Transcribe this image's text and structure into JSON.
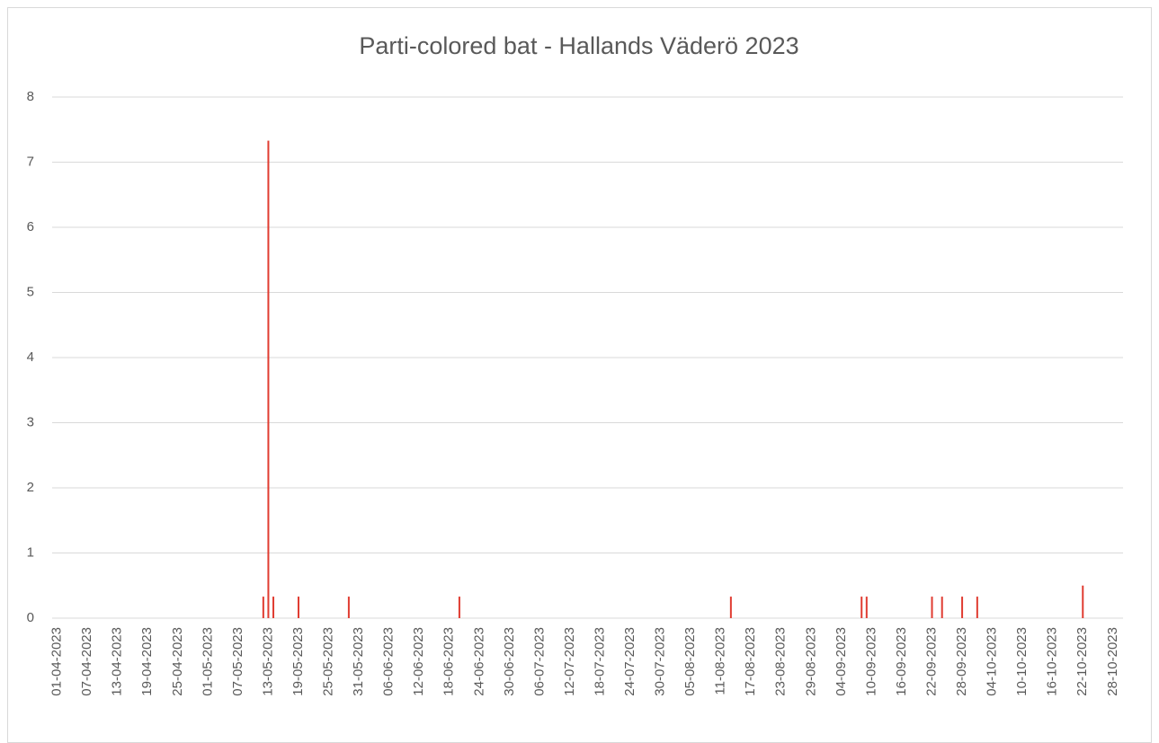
{
  "chart_data": {
    "type": "bar",
    "title": "Parti-colored bat - Hallands Väderö 2023",
    "x": [
      "12-05-2023",
      "13-05-2023",
      "14-05-2023",
      "19-05-2023",
      "29-05-2023",
      "20-06-2023",
      "13-08-2023",
      "08-09-2023",
      "09-09-2023",
      "22-09-2023",
      "24-09-2023",
      "28-09-2023",
      "01-10-2023",
      "22-10-2023"
    ],
    "values": [
      0.33,
      7.33,
      0.33,
      0.33,
      0.33,
      0.33,
      0.33,
      0.33,
      0.33,
      0.33,
      0.33,
      0.33,
      0.33,
      0.5
    ],
    "color": "#e03c31",
    "xlim": [
      "31-03-2023",
      "30-10-2023"
    ],
    "xticks": [
      "01-04-2023",
      "07-04-2023",
      "13-04-2023",
      "19-04-2023",
      "25-04-2023",
      "01-05-2023",
      "07-05-2023",
      "13-05-2023",
      "19-05-2023",
      "25-05-2023",
      "31-05-2023",
      "06-06-2023",
      "12-06-2023",
      "18-06-2023",
      "24-06-2023",
      "30-06-2023",
      "06-07-2023",
      "12-07-2023",
      "18-07-2023",
      "24-07-2023",
      "30-07-2023",
      "05-08-2023",
      "11-08-2023",
      "17-08-2023",
      "23-08-2023",
      "29-08-2023",
      "04-09-2023",
      "10-09-2023",
      "16-09-2023",
      "22-09-2023",
      "28-09-2023",
      "04-10-2023",
      "10-10-2023",
      "16-10-2023",
      "22-10-2023",
      "28-10-2023"
    ],
    "ylim": [
      0,
      8
    ],
    "yticks": [
      0,
      1,
      2,
      3,
      4,
      5,
      6,
      7,
      8
    ],
    "grid": true
  }
}
